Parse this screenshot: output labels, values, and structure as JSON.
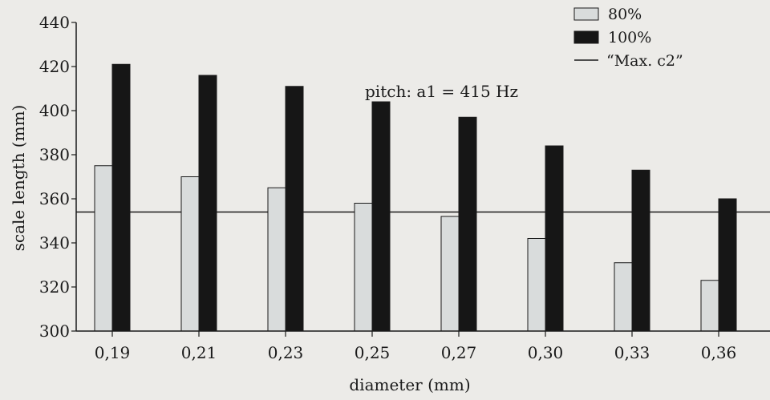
{
  "chart_data": {
    "type": "bar",
    "title": "",
    "annotation": "pitch: a1 = 415 Hz",
    "xlabel": "diameter (mm)",
    "ylabel": "scale length (mm)",
    "ylim": [
      300,
      440
    ],
    "yticks": [
      300,
      320,
      340,
      360,
      380,
      400,
      420,
      440
    ],
    "categories": [
      "0,19",
      "0,21",
      "0,23",
      "0,25",
      "0,27",
      "0,30",
      "0,33",
      "0,36"
    ],
    "series": [
      {
        "name": "80%",
        "color": "#d9dcdc",
        "values": [
          375,
          370,
          365,
          358,
          352,
          342,
          331,
          323
        ]
      },
      {
        "name": "100%",
        "color": "#161616",
        "values": [
          421,
          416,
          411,
          404,
          397,
          384,
          373,
          360
        ]
      }
    ],
    "reference_line": {
      "name": "“Max. c2”",
      "value": 354
    },
    "grid": false,
    "legend_position": "top-right"
  }
}
